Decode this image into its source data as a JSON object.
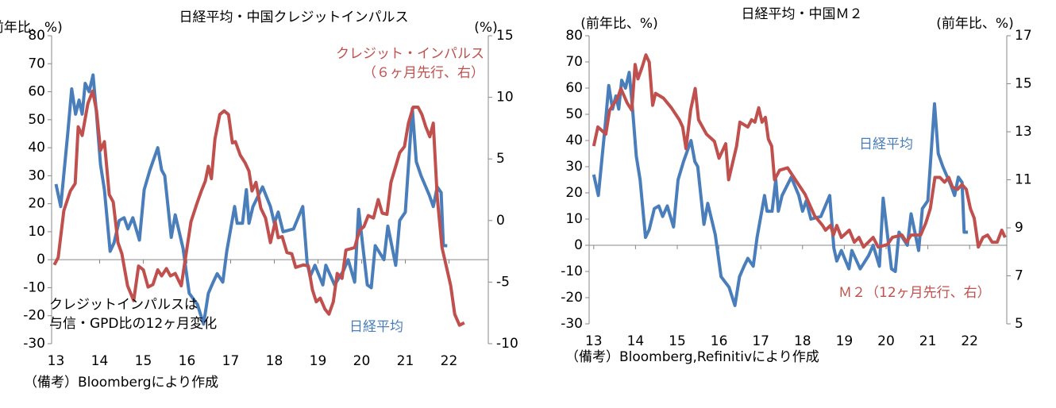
{
  "chart_data": [
    {
      "type": "line",
      "title": "日経平均・中国クレジットインパルス",
      "y_label": "(前年比、%)",
      "y2_label": "(%)",
      "annotation": "クレジットインパルスは\n与信・GPD比の12ヶ月変化",
      "source": "（備考）Bloombergにより作成",
      "xlim": [
        12.9,
        22.9
      ],
      "xticks": [
        13,
        14,
        15,
        16,
        17,
        18,
        19,
        20,
        21,
        22
      ],
      "ylim": [
        -30,
        80
      ],
      "yticks": [
        -30,
        -20,
        -10,
        0,
        10,
        20,
        30,
        40,
        50,
        60,
        70,
        80
      ],
      "y2lim": [
        -10,
        15
      ],
      "y2ticks": [
        -10,
        -5,
        0,
        5,
        10,
        15
      ],
      "series": [
        {
          "name": "日経平均",
          "color": "#4a7ebb",
          "x": [
            13.0,
            13.11,
            13.27,
            13.36,
            13.45,
            13.53,
            13.6,
            13.67,
            13.76,
            13.85,
            13.93,
            14.02,
            14.11,
            14.24,
            14.33,
            14.45,
            14.56,
            14.65,
            14.76,
            14.91,
            15.02,
            15.15,
            15.33,
            15.42,
            15.49,
            15.64,
            15.73,
            15.91,
            16.05,
            16.24,
            16.38,
            16.49,
            16.6,
            16.69,
            16.82,
            16.91,
            17.09,
            17.15,
            17.27,
            17.36,
            17.42,
            17.51,
            17.73,
            17.91,
            18.0,
            18.09,
            18.2,
            18.44,
            18.65,
            18.75,
            18.82,
            18.93,
            19.11,
            19.18,
            19.38,
            19.58,
            19.69,
            19.84,
            19.93,
            20.04,
            20.13,
            20.22,
            20.31,
            20.51,
            20.6,
            20.78,
            20.87,
            21.0,
            21.16,
            21.25,
            21.36,
            21.55,
            21.64,
            21.73,
            21.82,
            21.87,
            21.96
          ],
          "values": [
            27,
            19,
            45,
            61,
            52,
            57,
            52,
            63,
            60,
            66,
            52,
            34,
            25,
            3,
            6,
            14,
            15,
            11,
            15,
            7,
            25,
            32,
            40,
            32,
            30,
            8,
            16,
            4,
            -12,
            -16,
            -23,
            -12,
            -8,
            -5,
            -8,
            3,
            19,
            13,
            13,
            25,
            13,
            19,
            26,
            19,
            13,
            17,
            10,
            11,
            19,
            -1,
            -6,
            -2,
            -9,
            -2,
            -9,
            -4,
            0,
            -8,
            18,
            3,
            -9,
            -10,
            5,
            0,
            12,
            -2,
            14,
            17,
            54,
            35,
            30,
            23,
            19,
            26,
            24,
            5,
            5
          ]
        },
        {
          "name": "クレジット・インパルス\n（６ヶ月先行、右）",
          "color": "#c0504d",
          "axis": "y2",
          "x": [
            12.96,
            13.05,
            13.18,
            13.33,
            13.44,
            13.51,
            13.6,
            13.73,
            13.84,
            13.93,
            14.02,
            14.11,
            14.22,
            14.31,
            14.42,
            14.51,
            14.64,
            14.78,
            14.89,
            15.0,
            15.11,
            15.22,
            15.33,
            15.42,
            15.53,
            15.62,
            15.73,
            15.87,
            15.98,
            16.09,
            16.22,
            16.33,
            16.42,
            16.49,
            16.56,
            16.64,
            16.75,
            16.85,
            16.95,
            17.04,
            17.11,
            17.22,
            17.33,
            17.42,
            17.49,
            17.58,
            17.69,
            17.8,
            17.91,
            18.02,
            18.09,
            18.18,
            18.29,
            18.4,
            18.49,
            18.67,
            18.78,
            18.87,
            18.96,
            19.05,
            19.16,
            19.25,
            19.35,
            19.44,
            19.55,
            19.64,
            19.84,
            19.95,
            20.05,
            20.15,
            20.27,
            20.38,
            20.47,
            20.58,
            20.67,
            20.78,
            20.87,
            20.98,
            21.07,
            21.18,
            21.29,
            21.38,
            21.47,
            21.56,
            21.64,
            21.73,
            21.84,
            21.93,
            22.04,
            22.13,
            22.24,
            22.35
          ],
          "values": [
            -3.6,
            -3.0,
            0.8,
            2.4,
            3.0,
            7.6,
            6.9,
            9.5,
            10.5,
            8.9,
            5.7,
            6.4,
            2.1,
            1.5,
            -1.8,
            -2.7,
            -5.3,
            -6.5,
            -3.7,
            -4.0,
            -5.4,
            -5.2,
            -4.0,
            -4.5,
            -3.9,
            -4.5,
            -4.3,
            -5.3,
            -2.7,
            -0.1,
            1.3,
            2.4,
            3.2,
            4.4,
            3.4,
            6.6,
            8.6,
            8.9,
            8.6,
            6.3,
            6.4,
            5.3,
            4.7,
            4.0,
            2.4,
            3.1,
            1.0,
            0.2,
            -1.8,
            -0.1,
            -1.4,
            -1.3,
            -2.6,
            -2.7,
            -3.8,
            -3.6,
            -3.7,
            -5.6,
            -6.6,
            -6.3,
            -7.2,
            -7.6,
            -6.6,
            -4.3,
            -4.7,
            -2.4,
            -2.2,
            -0.8,
            -0.5,
            0.4,
            0.2,
            1.7,
            0.6,
            0.5,
            3.1,
            4.4,
            5.5,
            6.0,
            7.9,
            9.2,
            9.2,
            8.6,
            7.6,
            6.8,
            7.9,
            1.9,
            -2.2,
            -3.6,
            -5.3,
            -7.6,
            -8.5,
            -8.3
          ]
        }
      ]
    },
    {
      "type": "line",
      "title": "日経平均・中国Ｍ２",
      "y_label": "(前年比、%)",
      "y2_label": "(前年比、%)",
      "source": "（備考）Bloomberg,Refinitivにより作成",
      "xlim": [
        12.89,
        22.89
      ],
      "xticks": [
        13,
        14,
        15,
        16,
        17,
        18,
        19,
        20,
        21,
        22
      ],
      "ylim": [
        -30,
        80
      ],
      "yticks": [
        -30,
        -20,
        -10,
        0,
        10,
        20,
        30,
        40,
        50,
        60,
        70,
        80
      ],
      "y2lim": [
        5,
        17
      ],
      "y2ticks": [
        5,
        7,
        9,
        11,
        13,
        15,
        17
      ],
      "series": [
        {
          "name": "日経平均",
          "color": "#4a7ebb",
          "x": [
            13.0,
            13.11,
            13.27,
            13.36,
            13.45,
            13.53,
            13.6,
            13.67,
            13.76,
            13.85,
            13.93,
            14.02,
            14.11,
            14.24,
            14.33,
            14.45,
            14.56,
            14.65,
            14.76,
            14.91,
            15.02,
            15.15,
            15.33,
            15.42,
            15.49,
            15.64,
            15.73,
            15.91,
            16.05,
            16.24,
            16.38,
            16.49,
            16.6,
            16.69,
            16.82,
            16.91,
            17.09,
            17.15,
            17.27,
            17.36,
            17.42,
            17.51,
            17.73,
            17.91,
            18.0,
            18.09,
            18.2,
            18.44,
            18.65,
            18.75,
            18.82,
            18.93,
            19.11,
            19.18,
            19.38,
            19.58,
            19.69,
            19.84,
            19.93,
            20.04,
            20.13,
            20.22,
            20.31,
            20.51,
            20.6,
            20.78,
            20.87,
            21.0,
            21.16,
            21.25,
            21.36,
            21.55,
            21.64,
            21.73,
            21.82,
            21.87,
            21.96
          ],
          "values": [
            27,
            19,
            45,
            61,
            52,
            57,
            52,
            63,
            60,
            66,
            52,
            34,
            25,
            3,
            6,
            14,
            15,
            11,
            15,
            7,
            25,
            32,
            40,
            32,
            30,
            8,
            16,
            4,
            -12,
            -16,
            -23,
            -12,
            -8,
            -5,
            -8,
            3,
            19,
            13,
            13,
            25,
            13,
            19,
            26,
            19,
            13,
            17,
            10,
            11,
            19,
            -1,
            -6,
            -2,
            -9,
            -2,
            -9,
            -4,
            0,
            -8,
            18,
            3,
            -9,
            -10,
            5,
            0,
            12,
            -2,
            14,
            17,
            54,
            35,
            30,
            23,
            19,
            26,
            24,
            5,
            5
          ]
        },
        {
          "name": "Ｍ２（12ヶ月先行、右）",
          "color": "#c0504d",
          "axis": "y2",
          "x": [
            13.0,
            13.1,
            13.29,
            13.38,
            13.57,
            13.65,
            13.8,
            13.91,
            13.99,
            14.06,
            14.16,
            14.25,
            14.33,
            14.41,
            14.48,
            14.67,
            14.86,
            15.05,
            15.13,
            15.21,
            15.32,
            15.43,
            15.51,
            15.7,
            15.89,
            16.0,
            16.16,
            16.23,
            16.42,
            16.5,
            16.69,
            16.78,
            16.86,
            16.95,
            17.03,
            17.11,
            17.18,
            17.26,
            17.33,
            17.45,
            17.64,
            17.83,
            18.06,
            18.29,
            18.48,
            18.55,
            18.67,
            18.74,
            18.82,
            18.93,
            19.12,
            19.24,
            19.35,
            19.46,
            19.69,
            19.81,
            20.03,
            20.15,
            20.38,
            20.49,
            20.6,
            20.83,
            20.95,
            21.06,
            21.17,
            21.29,
            21.4,
            21.5,
            21.59,
            21.71,
            21.82,
            21.92,
            22.02,
            22.11,
            22.21,
            22.32,
            22.43,
            22.54,
            22.66,
            22.77,
            22.85
          ],
          "values": [
            12.4,
            13.2,
            12.9,
            13.9,
            14.4,
            14.8,
            14.2,
            13.9,
            15.8,
            15.2,
            15.7,
            16.2,
            15.9,
            14.1,
            14.6,
            14.4,
            14.0,
            13.5,
            13.2,
            12.3,
            13.9,
            14.8,
            13.5,
            12.9,
            12.6,
            11.9,
            12.5,
            11.0,
            12.4,
            13.4,
            13.2,
            13.5,
            13.4,
            14.0,
            13.4,
            13.6,
            12.7,
            12.4,
            11.0,
            11.4,
            11.5,
            11.0,
            10.4,
            9.5,
            9.1,
            8.9,
            9.1,
            8.7,
            9.1,
            8.6,
            8.9,
            8.4,
            8.6,
            8.2,
            8.6,
            8.2,
            8.3,
            8.6,
            8.7,
            8.4,
            8.7,
            8.7,
            9.2,
            9.8,
            11.1,
            11.1,
            10.9,
            11.1,
            10.7,
            10.6,
            10.8,
            10.6,
            9.8,
            9.4,
            8.2,
            8.6,
            8.7,
            8.4,
            8.4,
            8.9,
            8.6
          ]
        }
      ]
    }
  ]
}
